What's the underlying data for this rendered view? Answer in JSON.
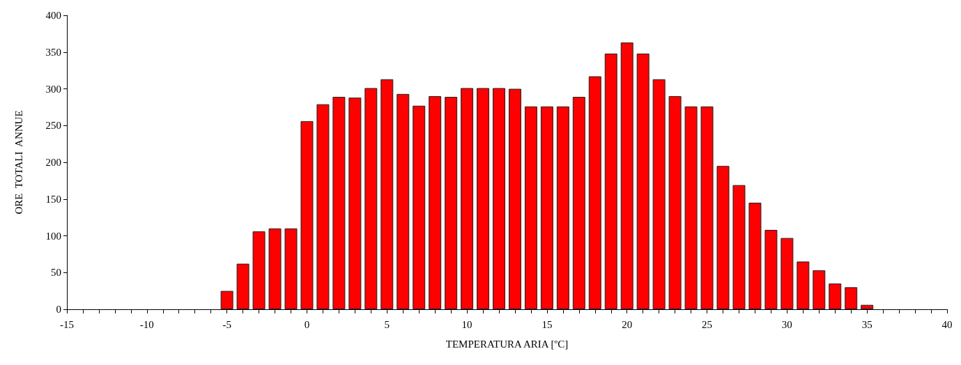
{
  "chart_data": {
    "type": "bar",
    "xlabel": "TEMPERATURA ARIA [ºC]",
    "ylabel": "ORE  TOTALI  ANNUE",
    "x": [
      -5,
      -4,
      -3,
      -2,
      -1,
      0,
      1,
      2,
      3,
      4,
      5,
      6,
      7,
      8,
      9,
      10,
      11,
      12,
      13,
      14,
      15,
      16,
      17,
      18,
      19,
      20,
      21,
      22,
      23,
      24,
      25,
      26,
      27,
      28,
      29,
      30,
      31,
      32,
      33,
      34,
      35
    ],
    "values": [
      25,
      62,
      106,
      110,
      110,
      256,
      279,
      289,
      288,
      301,
      313,
      293,
      277,
      290,
      289,
      301,
      301,
      301,
      300,
      276,
      276,
      276,
      289,
      317,
      348,
      363,
      348,
      313,
      290,
      276,
      276,
      195,
      169,
      145,
      108,
      97,
      65,
      53,
      35,
      30,
      6
    ],
    "color": "#ff0000",
    "xlim": [
      -15,
      40
    ],
    "xticks": [
      -15,
      -10,
      -5,
      0,
      5,
      10,
      15,
      20,
      25,
      30,
      35,
      40
    ],
    "ylim": [
      0,
      400
    ],
    "yticks": [
      0,
      50,
      100,
      150,
      200,
      250,
      300,
      350,
      400
    ],
    "grid": false
  }
}
